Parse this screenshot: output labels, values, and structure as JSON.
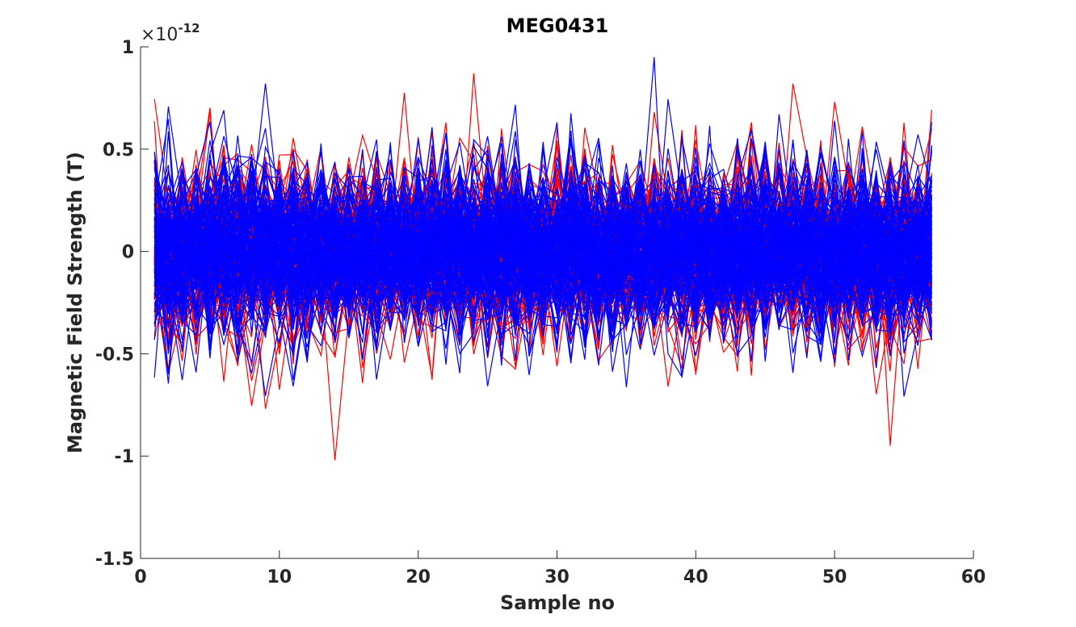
{
  "chart_data": {
    "type": "line",
    "title": "MEG0431",
    "xlabel": "Sample no",
    "ylabel": "Magnetic Field Strength (T)",
    "y_exponent_prefix": "×10",
    "y_exponent": "-12",
    "xlim": [
      0,
      60
    ],
    "ylim": [
      -1.5,
      1
    ],
    "x_ticks": [
      0,
      10,
      20,
      30,
      40,
      50,
      60
    ],
    "x_tick_labels": [
      "0",
      "10",
      "20",
      "30",
      "40",
      "50",
      "60"
    ],
    "y_ticks": [
      -1.5,
      -1,
      -0.5,
      0,
      0.5,
      1
    ],
    "y_tick_labels": [
      "-1.5",
      "-1",
      "-0.5",
      "0",
      "0.5",
      "1"
    ],
    "grid": false,
    "legend": "none",
    "x_range_data": [
      1,
      57
    ],
    "series": [
      {
        "color": "#ff0000",
        "count": 150,
        "values": []
      },
      {
        "color": "#0000ff",
        "count": 150,
        "values": []
      }
    ],
    "notable_points": [
      {
        "x": 37,
        "y": 0.95,
        "color": "#0000ff"
      },
      {
        "x": 14,
        "y": -1.02,
        "color": "#ff0000"
      },
      {
        "x": 24,
        "y": 0.87,
        "color": "#ff0000"
      },
      {
        "x": 54,
        "y": -0.95,
        "color": "#ff0000"
      }
    ]
  }
}
